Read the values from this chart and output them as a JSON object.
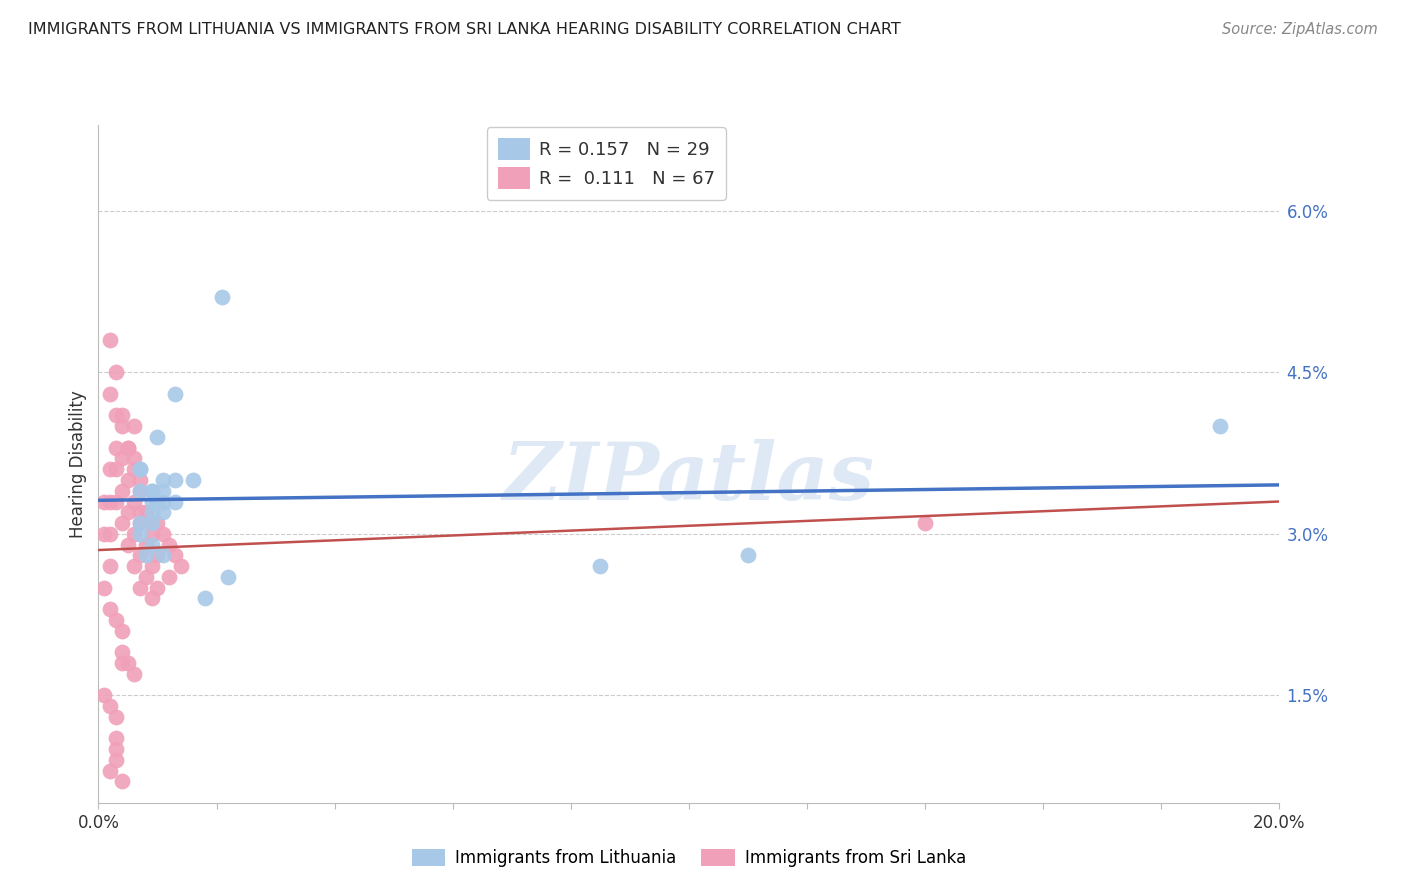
{
  "title": "IMMIGRANTS FROM LITHUANIA VS IMMIGRANTS FROM SRI LANKA HEARING DISABILITY CORRELATION CHART",
  "source": "Source: ZipAtlas.com",
  "ylabel": "Hearing Disability",
  "ytick_labels": [
    "6.0%",
    "4.5%",
    "3.0%",
    "1.5%"
  ],
  "ytick_values": [
    0.06,
    0.045,
    0.03,
    0.015
  ],
  "xlim": [
    0.0,
    0.2
  ],
  "ylim": [
    0.005,
    0.068
  ],
  "legend_r1": "R = 0.157",
  "legend_n1": "N = 29",
  "legend_r2": "R =  0.111",
  "legend_n2": "N = 67",
  "color_lithuania": "#A8C8E8",
  "color_srilanka": "#F0A0B8",
  "line_color_lithuania": "#4472C4",
  "line_color_srilanka": "#C0504D",
  "watermark": "ZIPatlas",
  "background_color": "#FFFFFF",
  "lithuania_x": [
    0.007,
    0.01,
    0.007,
    0.009,
    0.011,
    0.013,
    0.007,
    0.009,
    0.011,
    0.013,
    0.01,
    0.016,
    0.021,
    0.008,
    0.009,
    0.013,
    0.009,
    0.011,
    0.009,
    0.007,
    0.009,
    0.011,
    0.022,
    0.19,
    0.11,
    0.007,
    0.011,
    0.085,
    0.018
  ],
  "lithuania_y": [
    0.034,
    0.039,
    0.036,
    0.032,
    0.034,
    0.033,
    0.031,
    0.031,
    0.033,
    0.043,
    0.033,
    0.035,
    0.052,
    0.028,
    0.034,
    0.035,
    0.033,
    0.032,
    0.034,
    0.03,
    0.029,
    0.028,
    0.026,
    0.04,
    0.028,
    0.036,
    0.035,
    0.027,
    0.024
  ],
  "srilanka_x": [
    0.001,
    0.001,
    0.002,
    0.002,
    0.002,
    0.002,
    0.003,
    0.003,
    0.003,
    0.003,
    0.004,
    0.004,
    0.004,
    0.004,
    0.005,
    0.005,
    0.005,
    0.005,
    0.006,
    0.006,
    0.006,
    0.006,
    0.007,
    0.007,
    0.007,
    0.007,
    0.008,
    0.008,
    0.008,
    0.009,
    0.009,
    0.009,
    0.01,
    0.01,
    0.01,
    0.011,
    0.012,
    0.012,
    0.013,
    0.014,
    0.001,
    0.002,
    0.003,
    0.004,
    0.004,
    0.005,
    0.006,
    0.001,
    0.002,
    0.003,
    0.003,
    0.002,
    0.003,
    0.002,
    0.004,
    0.005,
    0.006,
    0.006,
    0.007,
    0.007,
    0.009,
    0.14,
    0.003,
    0.003,
    0.002,
    0.004,
    0.004
  ],
  "srilanka_y": [
    0.03,
    0.033,
    0.036,
    0.033,
    0.03,
    0.027,
    0.038,
    0.041,
    0.036,
    0.033,
    0.04,
    0.037,
    0.034,
    0.031,
    0.038,
    0.035,
    0.032,
    0.029,
    0.036,
    0.033,
    0.03,
    0.027,
    0.034,
    0.031,
    0.028,
    0.025,
    0.032,
    0.029,
    0.026,
    0.03,
    0.027,
    0.024,
    0.031,
    0.028,
    0.025,
    0.03,
    0.029,
    0.026,
    0.028,
    0.027,
    0.025,
    0.023,
    0.022,
    0.021,
    0.019,
    0.018,
    0.017,
    0.015,
    0.014,
    0.013,
    0.011,
    0.048,
    0.045,
    0.043,
    0.041,
    0.038,
    0.04,
    0.037,
    0.035,
    0.032,
    0.031,
    0.031,
    0.01,
    0.009,
    0.008,
    0.007,
    0.018
  ]
}
